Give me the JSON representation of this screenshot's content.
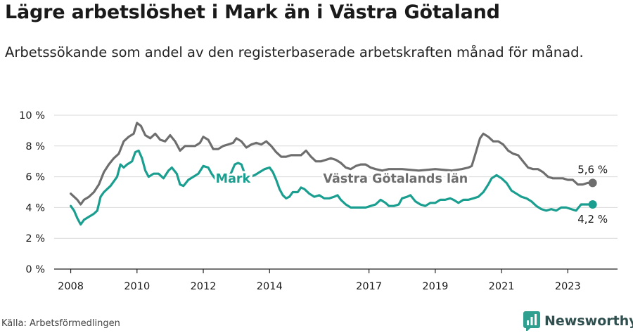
{
  "title": "Lägre arbetslöshet i Mark än i Västra Götaland",
  "subtitle": "Arbetssökande som andel av den registerbaserade arbetskraften månad för månad.",
  "source": "Källa: Arbetsförmedlingen",
  "brand": "Newsworthy",
  "colors": {
    "mark": "#1a9e8f",
    "vg": "#6e6e6e",
    "grid": "#d9d9d9",
    "axis": "#222222",
    "text": "#1a1a1a"
  },
  "icons": {
    "brand_logo": "bar-chart-logo-icon"
  },
  "chart_data": {
    "type": "line",
    "x_range": [
      2007.5,
      2024.5
    ],
    "ylim": [
      0,
      10
    ],
    "y_ticks": [
      {
        "value": 0,
        "label": "0 %"
      },
      {
        "value": 2,
        "label": "2 %"
      },
      {
        "value": 4,
        "label": "4 %"
      },
      {
        "value": 6,
        "label": "6 %"
      },
      {
        "value": 8,
        "label": "8 %"
      },
      {
        "value": 10,
        "label": "10 %"
      }
    ],
    "x_ticks": [
      {
        "value": 2008,
        "label": "2008"
      },
      {
        "value": 2010,
        "label": "2010"
      },
      {
        "value": 2012,
        "label": "2012"
      },
      {
        "value": 2014,
        "label": "2014"
      },
      {
        "value": 2017,
        "label": "2017"
      },
      {
        "value": 2019,
        "label": "2019"
      },
      {
        "value": 2021,
        "label": "2021"
      },
      {
        "value": 2023,
        "label": "2023"
      }
    ],
    "series": [
      {
        "name": "Västra Götalands län",
        "key": "vg",
        "end_label": "5,6 %",
        "points": [
          [
            2008.0,
            4.9
          ],
          [
            2008.1,
            4.7
          ],
          [
            2008.2,
            4.5
          ],
          [
            2008.3,
            4.2
          ],
          [
            2008.4,
            4.5
          ],
          [
            2008.55,
            4.7
          ],
          [
            2008.7,
            5.0
          ],
          [
            2008.85,
            5.5
          ],
          [
            2009.0,
            6.3
          ],
          [
            2009.15,
            6.8
          ],
          [
            2009.3,
            7.2
          ],
          [
            2009.45,
            7.5
          ],
          [
            2009.6,
            8.3
          ],
          [
            2009.75,
            8.6
          ],
          [
            2009.9,
            8.8
          ],
          [
            2010.0,
            9.5
          ],
          [
            2010.12,
            9.3
          ],
          [
            2010.25,
            8.7
          ],
          [
            2010.4,
            8.5
          ],
          [
            2010.55,
            8.8
          ],
          [
            2010.7,
            8.4
          ],
          [
            2010.85,
            8.3
          ],
          [
            2011.0,
            8.7
          ],
          [
            2011.15,
            8.3
          ],
          [
            2011.3,
            7.7
          ],
          [
            2011.45,
            8.0
          ],
          [
            2011.6,
            8.0
          ],
          [
            2011.75,
            8.0
          ],
          [
            2011.9,
            8.2
          ],
          [
            2012.0,
            8.6
          ],
          [
            2012.15,
            8.4
          ],
          [
            2012.3,
            7.8
          ],
          [
            2012.45,
            7.8
          ],
          [
            2012.6,
            8.0
          ],
          [
            2012.75,
            8.1
          ],
          [
            2012.9,
            8.2
          ],
          [
            2013.0,
            8.5
          ],
          [
            2013.15,
            8.3
          ],
          [
            2013.3,
            7.9
          ],
          [
            2013.45,
            8.1
          ],
          [
            2013.6,
            8.2
          ],
          [
            2013.75,
            8.1
          ],
          [
            2013.9,
            8.3
          ],
          [
            2014.05,
            8.0
          ],
          [
            2014.2,
            7.6
          ],
          [
            2014.35,
            7.3
          ],
          [
            2014.5,
            7.3
          ],
          [
            2014.65,
            7.4
          ],
          [
            2014.8,
            7.4
          ],
          [
            2014.95,
            7.4
          ],
          [
            2015.1,
            7.7
          ],
          [
            2015.25,
            7.3
          ],
          [
            2015.4,
            7.0
          ],
          [
            2015.55,
            7.0
          ],
          [
            2015.7,
            7.1
          ],
          [
            2015.85,
            7.2
          ],
          [
            2016.0,
            7.1
          ],
          [
            2016.15,
            6.9
          ],
          [
            2016.3,
            6.6
          ],
          [
            2016.45,
            6.5
          ],
          [
            2016.6,
            6.7
          ],
          [
            2016.75,
            6.8
          ],
          [
            2016.9,
            6.8
          ],
          [
            2017.05,
            6.6
          ],
          [
            2017.2,
            6.5
          ],
          [
            2017.4,
            6.4
          ],
          [
            2017.6,
            6.5
          ],
          [
            2018.0,
            6.5
          ],
          [
            2018.5,
            6.4
          ],
          [
            2019.0,
            6.5
          ],
          [
            2019.5,
            6.4
          ],
          [
            2019.8,
            6.5
          ],
          [
            2020.0,
            6.6
          ],
          [
            2020.1,
            6.7
          ],
          [
            2020.2,
            7.4
          ],
          [
            2020.35,
            8.5
          ],
          [
            2020.45,
            8.8
          ],
          [
            2020.6,
            8.6
          ],
          [
            2020.75,
            8.3
          ],
          [
            2020.9,
            8.3
          ],
          [
            2021.05,
            8.1
          ],
          [
            2021.2,
            7.7
          ],
          [
            2021.35,
            7.5
          ],
          [
            2021.5,
            7.4
          ],
          [
            2021.65,
            7.0
          ],
          [
            2021.8,
            6.6
          ],
          [
            2021.95,
            6.5
          ],
          [
            2022.1,
            6.5
          ],
          [
            2022.25,
            6.3
          ],
          [
            2022.4,
            6.0
          ],
          [
            2022.55,
            5.9
          ],
          [
            2022.7,
            5.9
          ],
          [
            2022.85,
            5.9
          ],
          [
            2023.0,
            5.8
          ],
          [
            2023.15,
            5.8
          ],
          [
            2023.3,
            5.5
          ],
          [
            2023.45,
            5.5
          ],
          [
            2023.6,
            5.6
          ],
          [
            2023.75,
            5.6
          ]
        ]
      },
      {
        "name": "Mark",
        "key": "mark",
        "end_label": "4,2 %",
        "points": [
          [
            2008.0,
            4.1
          ],
          [
            2008.1,
            3.8
          ],
          [
            2008.2,
            3.3
          ],
          [
            2008.3,
            2.9
          ],
          [
            2008.4,
            3.2
          ],
          [
            2008.55,
            3.4
          ],
          [
            2008.7,
            3.6
          ],
          [
            2008.8,
            3.8
          ],
          [
            2008.9,
            4.7
          ],
          [
            2009.0,
            5.0
          ],
          [
            2009.1,
            5.2
          ],
          [
            2009.2,
            5.4
          ],
          [
            2009.3,
            5.7
          ],
          [
            2009.4,
            6.0
          ],
          [
            2009.5,
            6.8
          ],
          [
            2009.6,
            6.6
          ],
          [
            2009.7,
            6.8
          ],
          [
            2009.85,
            7.0
          ],
          [
            2009.95,
            7.6
          ],
          [
            2010.05,
            7.7
          ],
          [
            2010.15,
            7.2
          ],
          [
            2010.25,
            6.4
          ],
          [
            2010.35,
            6.0
          ],
          [
            2010.5,
            6.2
          ],
          [
            2010.65,
            6.2
          ],
          [
            2010.8,
            5.9
          ],
          [
            2010.95,
            6.4
          ],
          [
            2011.05,
            6.6
          ],
          [
            2011.2,
            6.2
          ],
          [
            2011.3,
            5.5
          ],
          [
            2011.4,
            5.4
          ],
          [
            2011.55,
            5.8
          ],
          [
            2011.7,
            6.0
          ],
          [
            2011.85,
            6.2
          ],
          [
            2012.0,
            6.7
          ],
          [
            2012.15,
            6.6
          ],
          [
            2012.25,
            6.2
          ],
          [
            2012.35,
            5.9
          ],
          [
            2012.45,
            5.6
          ],
          [
            2012.6,
            5.7
          ],
          [
            2012.75,
            5.9
          ],
          [
            2012.85,
            6.3
          ],
          [
            2012.95,
            6.8
          ],
          [
            2013.05,
            6.9
          ],
          [
            2013.15,
            6.8
          ],
          [
            2013.25,
            6.2
          ],
          [
            2013.4,
            6.0
          ],
          [
            2013.55,
            6.1
          ],
          [
            2013.7,
            6.3
          ],
          [
            2013.85,
            6.5
          ],
          [
            2014.0,
            6.6
          ],
          [
            2014.1,
            6.3
          ],
          [
            2014.2,
            5.8
          ],
          [
            2014.3,
            5.2
          ],
          [
            2014.4,
            4.8
          ],
          [
            2014.5,
            4.6
          ],
          [
            2014.6,
            4.7
          ],
          [
            2014.7,
            5.0
          ],
          [
            2014.85,
            5.0
          ],
          [
            2014.95,
            5.3
          ],
          [
            2015.05,
            5.2
          ],
          [
            2015.2,
            4.9
          ],
          [
            2015.35,
            4.7
          ],
          [
            2015.5,
            4.8
          ],
          [
            2015.65,
            4.6
          ],
          [
            2015.8,
            4.6
          ],
          [
            2015.95,
            4.7
          ],
          [
            2016.05,
            4.8
          ],
          [
            2016.15,
            4.5
          ],
          [
            2016.3,
            4.2
          ],
          [
            2016.45,
            4.0
          ],
          [
            2016.6,
            4.0
          ],
          [
            2016.75,
            4.0
          ],
          [
            2016.9,
            4.0
          ],
          [
            2017.05,
            4.1
          ],
          [
            2017.2,
            4.2
          ],
          [
            2017.35,
            4.5
          ],
          [
            2017.5,
            4.3
          ],
          [
            2017.6,
            4.1
          ],
          [
            2017.75,
            4.1
          ],
          [
            2017.9,
            4.2
          ],
          [
            2018.0,
            4.6
          ],
          [
            2018.15,
            4.7
          ],
          [
            2018.25,
            4.8
          ],
          [
            2018.4,
            4.4
          ],
          [
            2018.55,
            4.2
          ],
          [
            2018.7,
            4.1
          ],
          [
            2018.85,
            4.3
          ],
          [
            2019.0,
            4.3
          ],
          [
            2019.15,
            4.5
          ],
          [
            2019.3,
            4.5
          ],
          [
            2019.45,
            4.6
          ],
          [
            2019.55,
            4.5
          ],
          [
            2019.7,
            4.3
          ],
          [
            2019.85,
            4.5
          ],
          [
            2020.0,
            4.5
          ],
          [
            2020.15,
            4.6
          ],
          [
            2020.3,
            4.7
          ],
          [
            2020.45,
            5.0
          ],
          [
            2020.6,
            5.5
          ],
          [
            2020.7,
            5.9
          ],
          [
            2020.85,
            6.1
          ],
          [
            2021.0,
            5.9
          ],
          [
            2021.15,
            5.6
          ],
          [
            2021.3,
            5.1
          ],
          [
            2021.45,
            4.9
          ],
          [
            2021.6,
            4.7
          ],
          [
            2021.75,
            4.6
          ],
          [
            2021.9,
            4.4
          ],
          [
            2022.05,
            4.1
          ],
          [
            2022.2,
            3.9
          ],
          [
            2022.35,
            3.8
          ],
          [
            2022.5,
            3.9
          ],
          [
            2022.65,
            3.8
          ],
          [
            2022.8,
            4.0
          ],
          [
            2022.95,
            4.0
          ],
          [
            2023.1,
            3.9
          ],
          [
            2023.25,
            3.8
          ],
          [
            2023.4,
            4.2
          ],
          [
            2023.55,
            4.2
          ],
          [
            2023.75,
            4.2
          ]
        ]
      }
    ],
    "annotations": [
      {
        "key": "mark",
        "text": "Mark",
        "x": 2012.9,
        "y": 5.85
      },
      {
        "key": "vg",
        "text": "Västra Götalands län",
        "x": 2017.8,
        "y": 5.85
      }
    ]
  }
}
